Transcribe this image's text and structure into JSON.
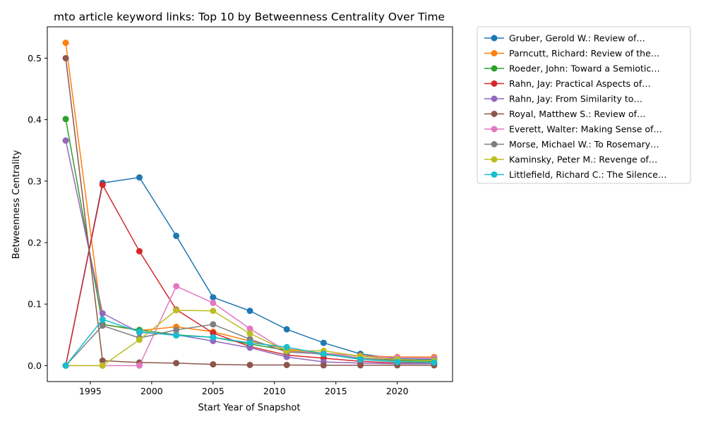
{
  "chart_data": {
    "type": "line",
    "title": "mto article keyword links: Top 10 by Betweenness Centrality Over Time",
    "xlabel": "Start Year of Snapshot",
    "ylabel": "Betweenness Centrality",
    "xlim": [
      1991.5,
      2024.5
    ],
    "ylim": [
      -0.026,
      0.551
    ],
    "xticks": [
      1995,
      2000,
      2005,
      2010,
      2015,
      2020
    ],
    "yticks": [
      0.0,
      0.1,
      0.2,
      0.3,
      0.4,
      0.5
    ],
    "xtick_labels": [
      "1995",
      "2000",
      "2005",
      "2010",
      "2015",
      "2020"
    ],
    "ytick_labels": [
      "0.0",
      "0.1",
      "0.2",
      "0.3",
      "0.4",
      "0.5"
    ],
    "grid": false,
    "legend_position": "outside-right-top",
    "x": [
      1993,
      1996,
      1999,
      2002,
      2005,
      2008,
      2011,
      2014,
      2017,
      2020,
      2023
    ],
    "series": [
      {
        "name": "Gruber, Gerold W.: Review of…",
        "color": "#1f77b4",
        "values": [
          0.0,
          0.297,
          0.306,
          0.211,
          0.111,
          0.089,
          0.059,
          0.037,
          0.019,
          0.011,
          0.01
        ]
      },
      {
        "name": "Parncutt, Richard: Review of the…",
        "color": "#ff7f0e",
        "values": [
          0.525,
          0.067,
          0.057,
          0.063,
          0.055,
          0.04,
          0.027,
          0.02,
          0.016,
          0.014,
          0.014
        ]
      },
      {
        "name": "Roeder, John: Toward a Semiotic…",
        "color": "#2ca02c",
        "values": [
          0.401,
          0.067,
          0.058,
          0.05,
          0.046,
          0.035,
          0.025,
          0.018,
          0.012,
          0.008,
          0.007
        ]
      },
      {
        "name": "Rahn, Jay: Practical Aspects of…",
        "color": "#d62728",
        "values": [
          0.0,
          0.294,
          0.186,
          0.091,
          0.053,
          0.031,
          0.017,
          0.012,
          0.007,
          0.004,
          0.004
        ]
      },
      {
        "name": "Rahn, Jay: From Similarity to…",
        "color": "#9467bd",
        "values": [
          0.366,
          0.085,
          0.054,
          0.05,
          0.04,
          0.029,
          0.014,
          0.006,
          0.004,
          0.003,
          0.003
        ]
      },
      {
        "name": "Royal, Matthew S.: Review of…",
        "color": "#8c564b",
        "values": [
          0.5,
          0.008,
          0.005,
          0.004,
          0.002,
          0.001,
          0.001,
          0.0005,
          0.0005,
          0.0005,
          0.0005
        ]
      },
      {
        "name": "Everett, Walter: Making Sense of…",
        "color": "#e377c2",
        "values": [
          0.0,
          0.0,
          0.0,
          0.129,
          0.102,
          0.06,
          0.023,
          0.02,
          0.015,
          0.013,
          0.012
        ]
      },
      {
        "name": "Morse, Michael W.: To Rosemary…",
        "color": "#7f7f7f",
        "values": [
          0.0,
          0.065,
          0.045,
          0.058,
          0.067,
          0.043,
          0.022,
          0.019,
          0.012,
          0.009,
          0.009
        ]
      },
      {
        "name": "Kaminsky, Peter M.: Revenge of…",
        "color": "#bcbd22",
        "values": [
          0.0,
          0.0,
          0.042,
          0.09,
          0.089,
          0.052,
          0.024,
          0.024,
          0.015,
          0.01,
          0.008
        ]
      },
      {
        "name": "Littlefield, Richard C.: The Silence…",
        "color": "#17becf",
        "values": [
          0.0,
          0.075,
          0.055,
          0.049,
          0.046,
          0.037,
          0.03,
          0.019,
          0.01,
          0.006,
          0.005
        ]
      }
    ]
  }
}
